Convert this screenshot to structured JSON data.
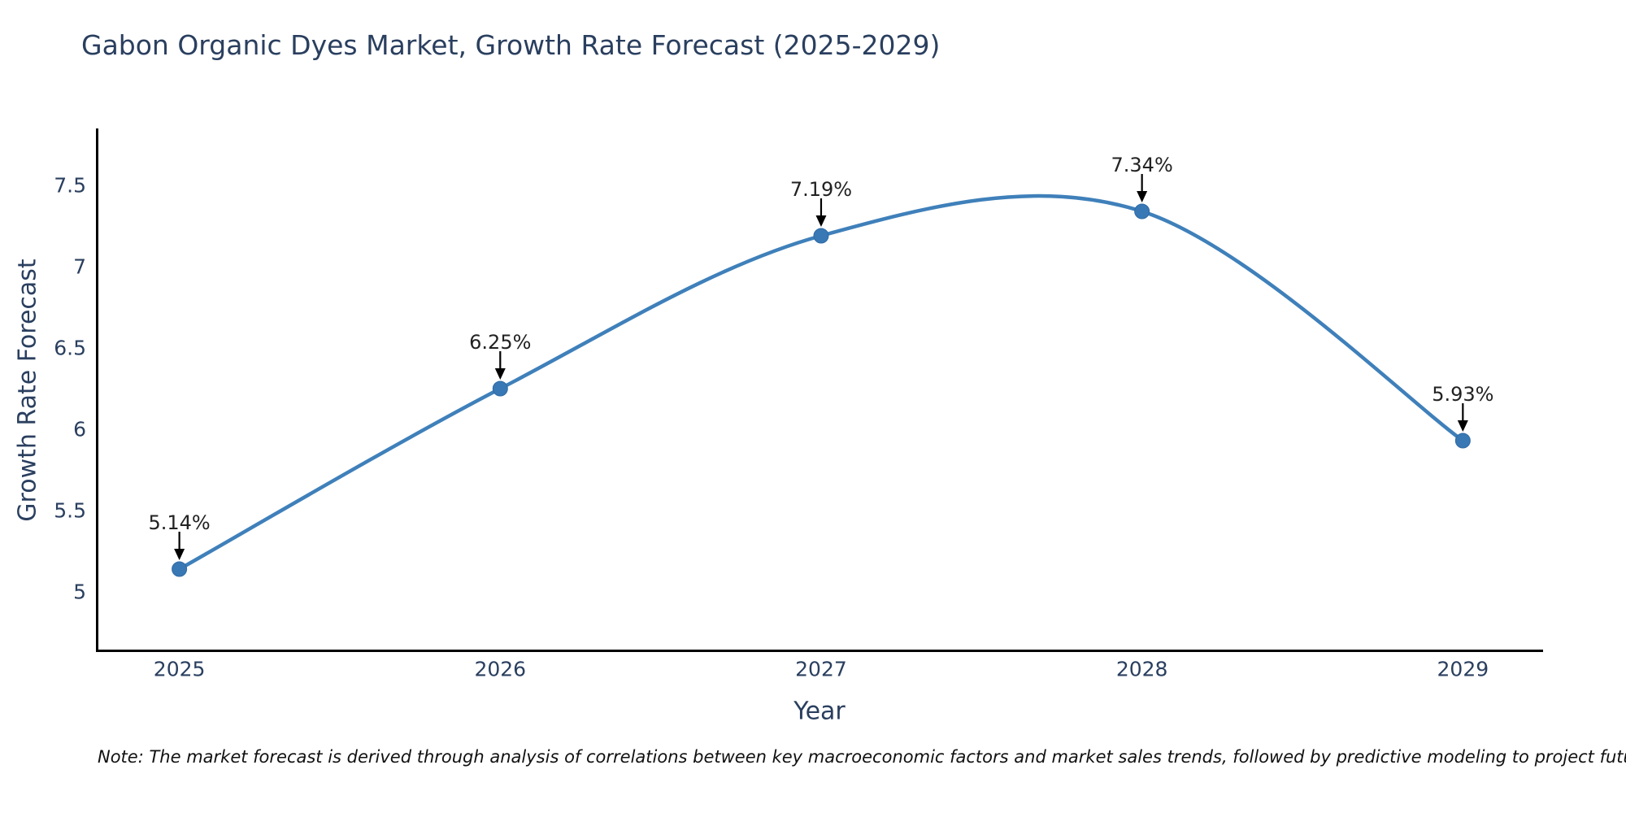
{
  "chart": {
    "title": "Gabon Organic Dyes Market, Growth Rate Forecast (2025-2029)",
    "xlabel": "Year",
    "ylabel": "Growth Rate Forecast",
    "note": "Note: The market forecast is derived through analysis of correlations between key macroeconomic factors and market sales trends, followed by predictive modeling to project future sales"
  },
  "chart_data": {
    "type": "line",
    "line_shape": "spline",
    "title": "Gabon Organic Dyes Market, Growth Rate Forecast (2025-2029)",
    "xlabel": "Year",
    "ylabel": "Growth Rate Forecast",
    "categories": [
      "2025",
      "2026",
      "2027",
      "2028",
      "2029"
    ],
    "x": [
      2025,
      2026,
      2027,
      2028,
      2029
    ],
    "series": [
      {
        "name": "Growth Rate Forecast",
        "values": [
          5.14,
          6.25,
          7.19,
          7.34,
          5.93
        ]
      }
    ],
    "point_labels": [
      "5.14%",
      "6.25%",
      "7.19%",
      "7.34%",
      "5.93%"
    ],
    "yticks": [
      "5",
      "5.5",
      "6",
      "6.5",
      "7",
      "7.5"
    ],
    "ytick_values": [
      5,
      5.5,
      6,
      6.5,
      7,
      7.5
    ],
    "xlim": [
      2024.74,
      2029.25
    ],
    "ylim": [
      4.63,
      7.85
    ],
    "grid": false,
    "legend": "none",
    "colors": {
      "line": "#3f80ba",
      "marker": "#3878b4",
      "marker_edge": "#2f6aa5",
      "arrow": "#000000",
      "axis": "#000000",
      "text": "#2a3f5f",
      "annotation": "#222222",
      "note": "#111111",
      "background": "#ffffff"
    }
  }
}
